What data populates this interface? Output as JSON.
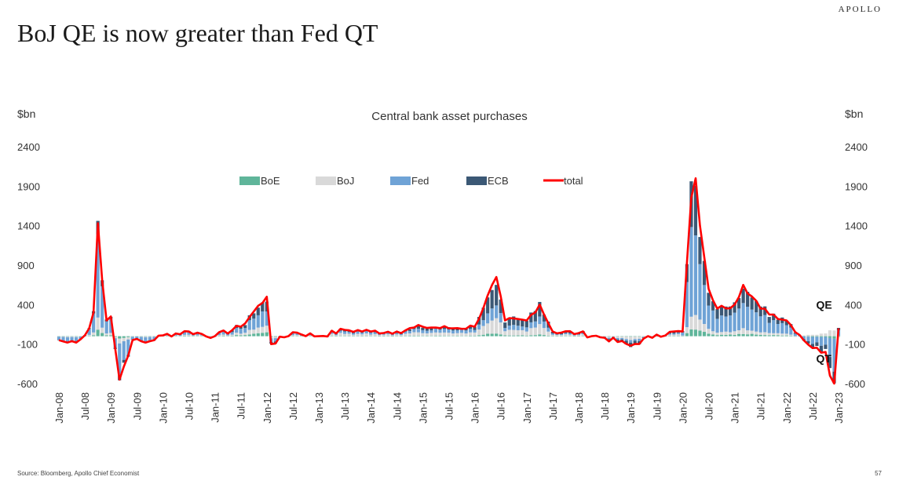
{
  "header": {
    "brand": "APOLLO",
    "title": "BoJ QE is now greater than Fed QT"
  },
  "footer": {
    "source": "Source: Bloomberg, Apollo Chief Economist",
    "page_number": "57"
  },
  "chart_data": {
    "type": "bar",
    "stacked": true,
    "title": "Central bank asset purchases",
    "ylabel_left": "$bn",
    "ylabel_right": "$bn",
    "ylim": [
      -600,
      2400
    ],
    "yticks": [
      2400,
      1900,
      1400,
      900,
      400,
      -100,
      -600
    ],
    "x_tick_labels": [
      "Jan-08",
      "Jul-08",
      "Jan-09",
      "Jul-09",
      "Jan-10",
      "Jul-10",
      "Jan-11",
      "Jul-11",
      "Jan-12",
      "Jul-12",
      "Jan-13",
      "Jul-13",
      "Jan-14",
      "Jul-14",
      "Jan-15",
      "Jul-15",
      "Jan-16",
      "Jul-16",
      "Jan-17",
      "Jul-17",
      "Jan-18",
      "Jul-18",
      "Jan-19",
      "Jul-19",
      "Jan-20",
      "Jul-20",
      "Jan-21",
      "Jul-21",
      "Jan-22",
      "Jul-22",
      "Jan-23"
    ],
    "legend": [
      "BoE",
      "BoJ",
      "Fed",
      "ECB",
      "total"
    ],
    "legend_position": "top-center",
    "colors": {
      "BoE": "#5fb59a",
      "BoJ": "#d9d9d9",
      "Fed": "#6fa3d6",
      "ECB": "#3b5875",
      "total": "#ff0000"
    },
    "annotations": [
      {
        "text": "QE",
        "date": "Oct-22",
        "value": 350
      },
      {
        "text": "QT",
        "date": "Oct-22",
        "value": -330
      }
    ],
    "total_anchors": [
      [
        "Jan-08",
        -50
      ],
      [
        "Mar-08",
        -80
      ],
      [
        "Jun-08",
        -40
      ],
      [
        "Aug-08",
        100
      ],
      [
        "Sep-08",
        300
      ],
      [
        "Oct-08",
        1430
      ],
      [
        "Nov-08",
        700
      ],
      [
        "Dec-08",
        200
      ],
      [
        "Jan-09",
        250
      ],
      [
        "Mar-09",
        -550
      ],
      [
        "Jun-09",
        -50
      ],
      [
        "Sep-09",
        -80
      ],
      [
        "Jan-10",
        10
      ],
      [
        "Jul-10",
        60
      ],
      [
        "Jan-11",
        0
      ],
      [
        "Jul-11",
        120
      ],
      [
        "Jan-12",
        500
      ],
      [
        "Feb-12",
        -100
      ],
      [
        "Jul-12",
        50
      ],
      [
        "Jan-13",
        0
      ],
      [
        "Jul-13",
        80
      ],
      [
        "Jan-14",
        60
      ],
      [
        "Jul-14",
        60
      ],
      [
        "Jan-15",
        120
      ],
      [
        "Jul-15",
        100
      ],
      [
        "Jan-16",
        120
      ],
      [
        "Jun-16",
        750
      ],
      [
        "Aug-16",
        200
      ],
      [
        "Jan-17",
        200
      ],
      [
        "Apr-17",
        400
      ],
      [
        "Jul-17",
        60
      ],
      [
        "Jan-18",
        40
      ],
      [
        "Jul-18",
        -20
      ],
      [
        "Jan-19",
        -120
      ],
      [
        "Jul-19",
        20
      ],
      [
        "Jan-20",
        60
      ],
      [
        "Mar-20",
        1750
      ],
      [
        "Apr-20",
        2000
      ],
      [
        "May-20",
        1400
      ],
      [
        "Jun-20",
        1000
      ],
      [
        "Jul-20",
        600
      ],
      [
        "Sep-20",
        350
      ],
      [
        "Jan-21",
        400
      ],
      [
        "Mar-21",
        650
      ],
      [
        "Jul-21",
        350
      ],
      [
        "Jan-22",
        200
      ],
      [
        "Jul-22",
        -150
      ],
      [
        "Oct-22",
        -200
      ],
      [
        "Nov-22",
        -500
      ],
      [
        "Dec-22",
        -600
      ],
      [
        "Jan-23",
        100
      ]
    ]
  }
}
